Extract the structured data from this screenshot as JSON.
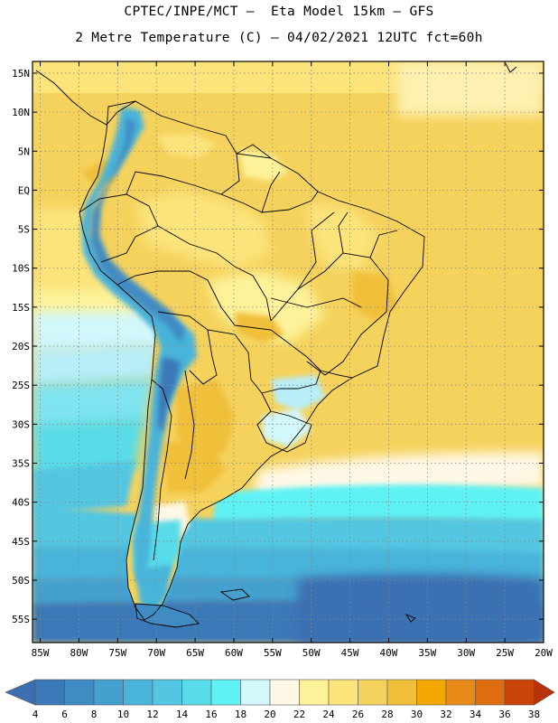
{
  "title_line1": "CPTEC/INPE/MCT –  Eta Model 15km – GFS",
  "title_line2": "2 Metre Temperature (C) – 04/02/2021 12UTC fct=60h",
  "map": {
    "region": "South America",
    "lat_range": [
      -58,
      16.5
    ],
    "lon_range": [
      -86,
      -20
    ],
    "lat_tick_labels": [
      "15N",
      "10N",
      "5N",
      "EQ",
      "5S",
      "10S",
      "15S",
      "20S",
      "25S",
      "30S",
      "35S",
      "40S",
      "45S",
      "50S",
      "55S"
    ],
    "lat_tick_values": [
      15,
      10,
      5,
      0,
      -5,
      -10,
      -15,
      -20,
      -25,
      -30,
      -35,
      -40,
      -45,
      -50,
      -55
    ],
    "lon_tick_labels": [
      "85W",
      "80W",
      "75W",
      "70W",
      "65W",
      "60W",
      "55W",
      "50W",
      "45W",
      "40W",
      "35W",
      "30W",
      "25W",
      "20W"
    ],
    "lon_tick_values": [
      -85,
      -80,
      -75,
      -70,
      -65,
      -60,
      -55,
      -50,
      -45,
      -40,
      -35,
      -30,
      -25,
      -20
    ],
    "gridlines": true,
    "gridline_style": "dotted"
  },
  "colorbar": {
    "labels": [
      "4",
      "6",
      "8",
      "10",
      "12",
      "14",
      "16",
      "18",
      "20",
      "22",
      "24",
      "26",
      "28",
      "30",
      "32",
      "34",
      "36",
      "38"
    ],
    "colors": [
      "#3a78b8",
      "#3f8bc4",
      "#44a0cf",
      "#4ab4da",
      "#52c6e2",
      "#58dce9",
      "#5ef2f4",
      "#d2f8fc",
      "#fff8e6",
      "#fdf29a",
      "#fce37a",
      "#f5d25c",
      "#f0c03a",
      "#f2a800",
      "#e88a18",
      "#e06c10",
      "#c84408"
    ],
    "low_arrow_color": "#3d6fb0",
    "high_arrow_color": "#b8320a"
  }
}
